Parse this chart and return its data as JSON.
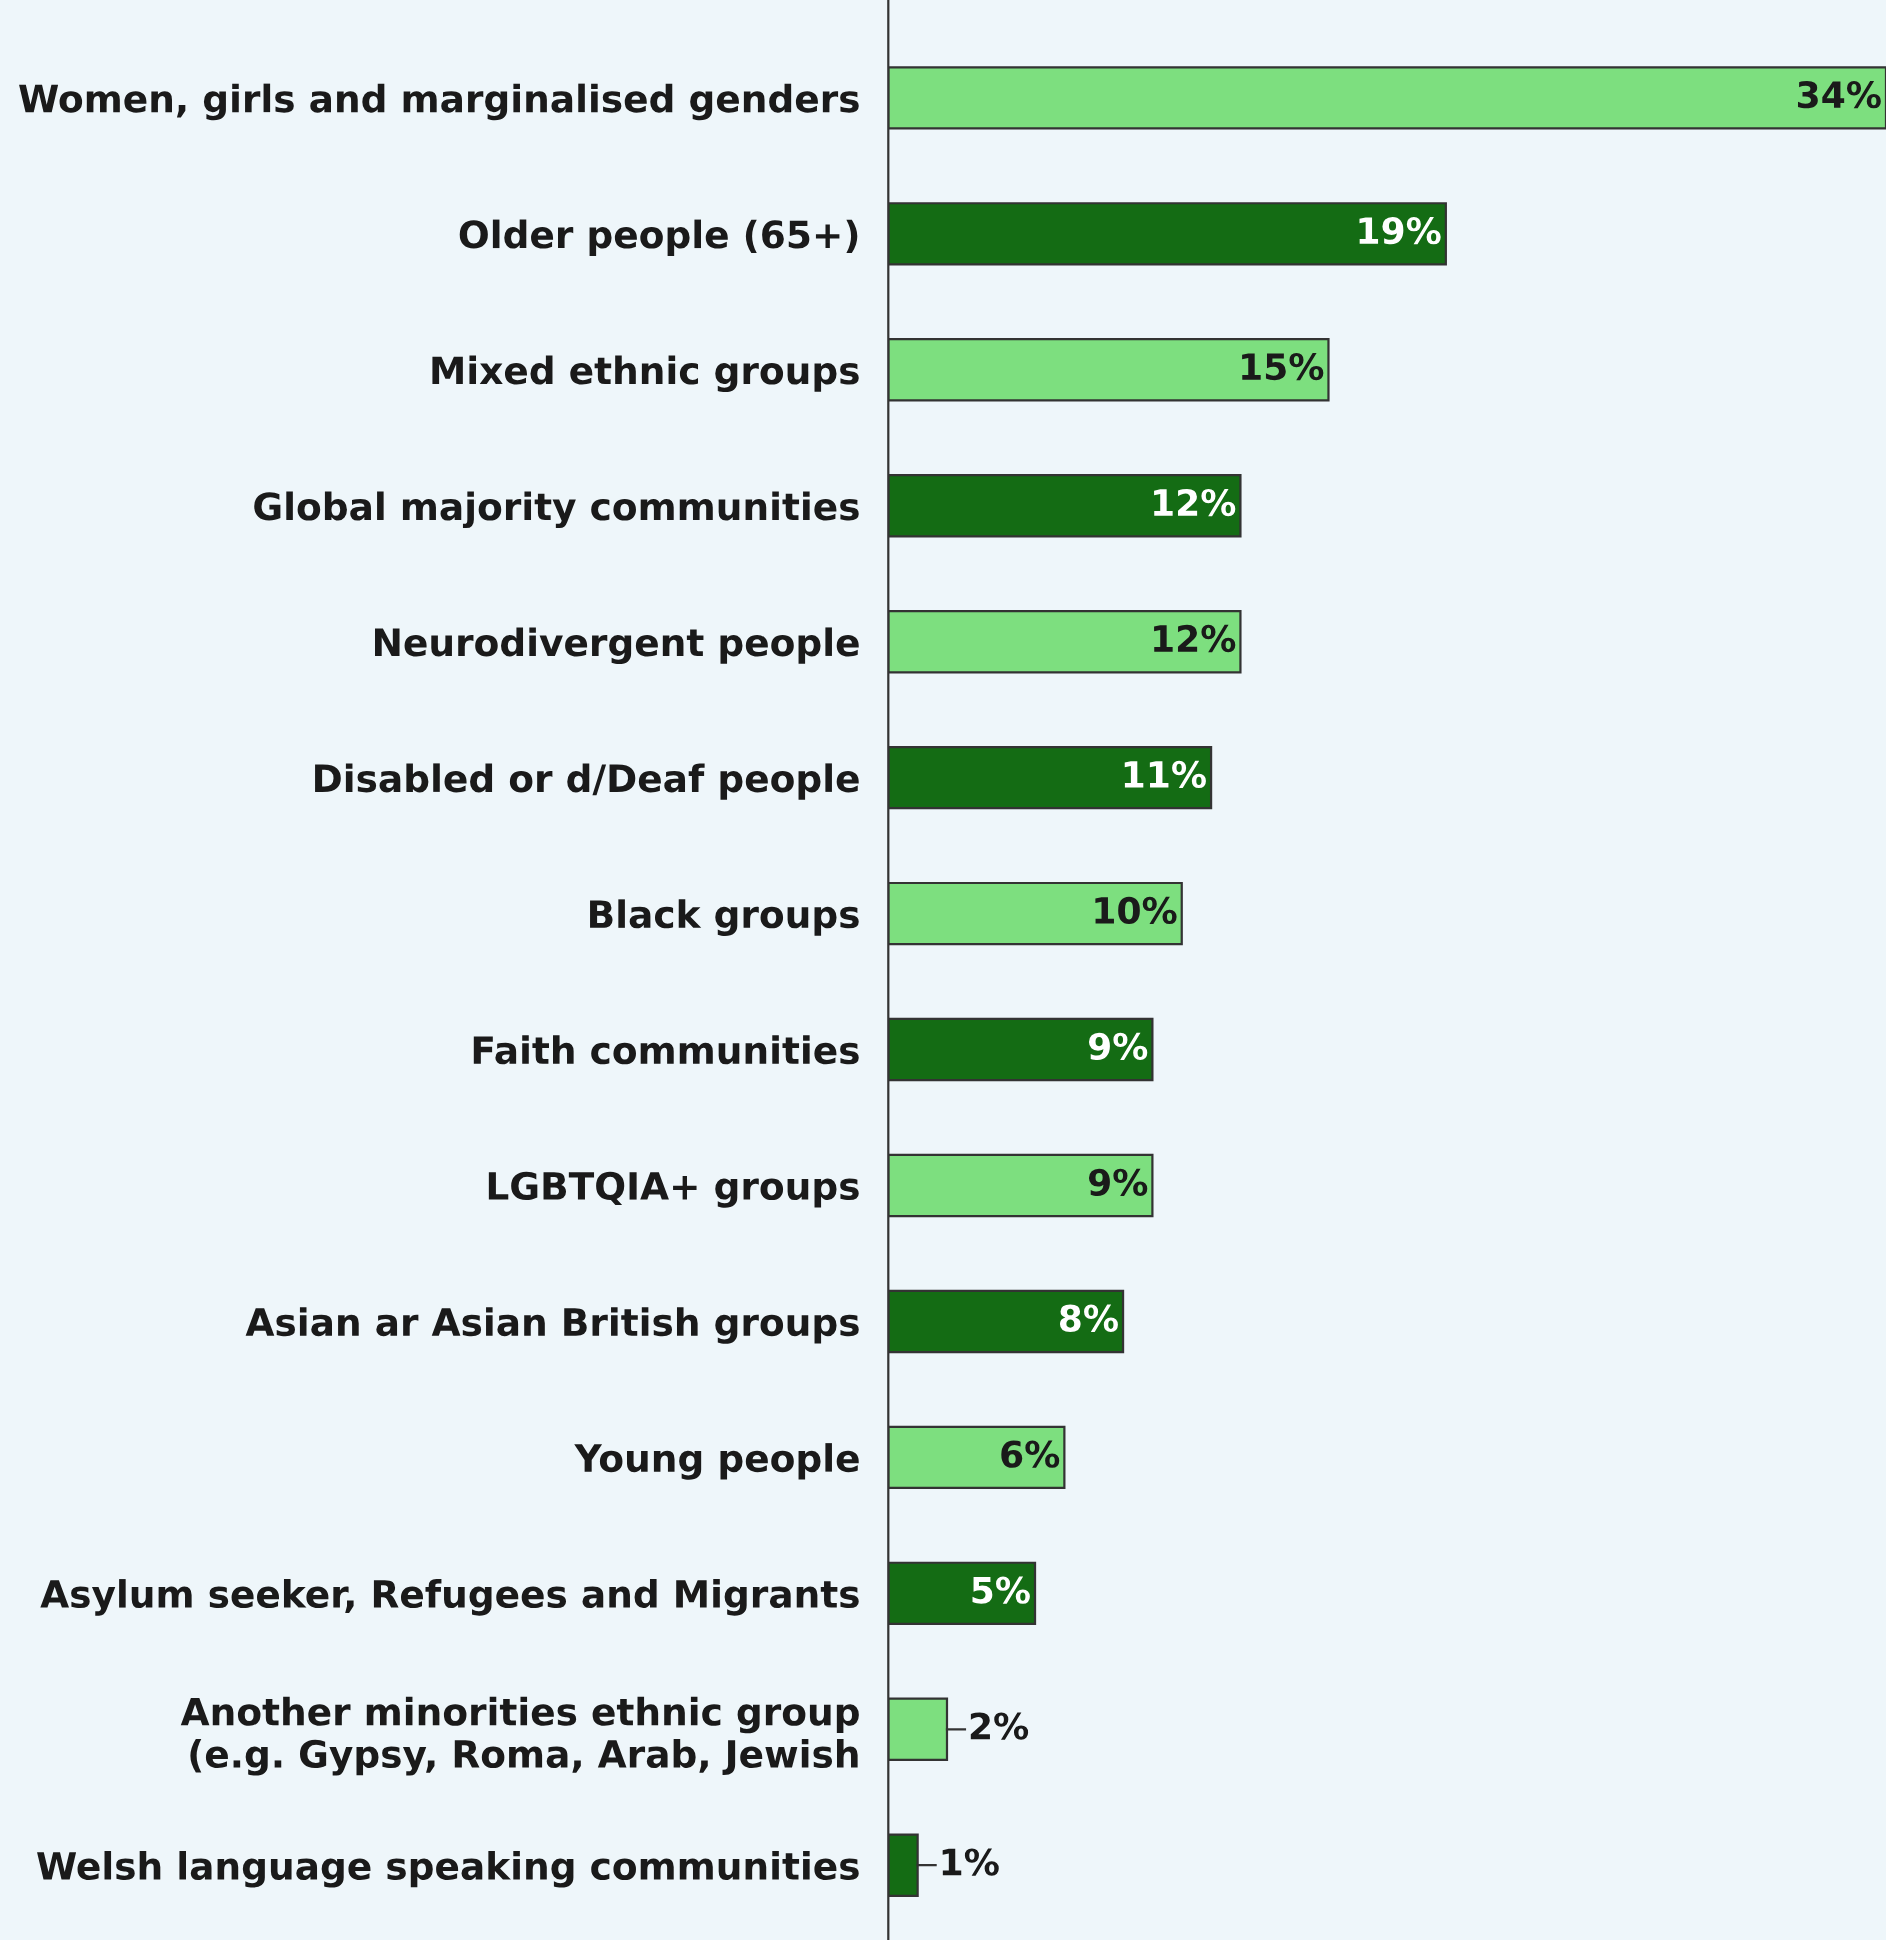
{
  "chart_data": {
    "type": "bar",
    "orientation": "horizontal",
    "categories": [
      "Women, girls and marginalised genders",
      "Older people (65+)",
      "Mixed ethnic groups",
      "Global majority communities",
      "Neurodivergent people",
      "Disabled or d/Deaf people",
      "Black groups",
      "Faith communities",
      "LGBTQIA+ groups",
      "Asian ar Asian British groups",
      "Young people",
      "Asylum seeker, Refugees and Migrants",
      "Another minorities ethnic group\n(e.g. Gypsy, Roma, Arab, Jewish",
      "Welsh language speaking communities"
    ],
    "values": [
      34,
      19,
      15,
      12,
      12,
      11,
      10,
      9,
      9,
      8,
      6,
      5,
      2,
      1
    ],
    "value_labels": [
      "34%",
      "19%",
      "15%",
      "12%",
      "12%",
      "11%",
      "10%",
      "9%",
      "9%",
      "8%",
      "6%",
      "5%",
      "2%",
      "1%"
    ],
    "colors": [
      "#7ddf7f",
      "#146c14",
      "#7ddf7f",
      "#146c14",
      "#7ddf7f",
      "#146c14",
      "#7ddf7f",
      "#146c14",
      "#7ddf7f",
      "#146c14",
      "#7ddf7f",
      "#146c14",
      "#7ddf7f",
      "#146c14"
    ],
    "grid": false,
    "legend": false
  }
}
